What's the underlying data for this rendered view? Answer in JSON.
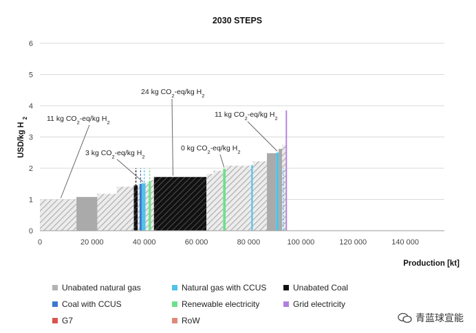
{
  "chart_data": {
    "type": "bar",
    "subtype": "supply-cost-curve",
    "title": "2030 STEPS",
    "xlabel": "Production [kt]",
    "ylabel": "USD/kg H2",
    "xlim": [
      0,
      155000
    ],
    "ylim": [
      0,
      6
    ],
    "xticks": [
      0,
      20000,
      40000,
      60000,
      80000,
      100000,
      120000,
      140000
    ],
    "xtick_labels": [
      "0",
      "20 000",
      "40 000",
      "60 000",
      "80 000",
      "100 000",
      "120 000",
      "140 000"
    ],
    "yticks": [
      0,
      1,
      2,
      3,
      4,
      5,
      6
    ],
    "ytick_labels": [
      "0",
      "1",
      "2",
      "3",
      "4",
      "5",
      "6"
    ],
    "grid": "horizontal",
    "legend_position": "bottom",
    "categories": [
      {
        "key": "ung",
        "name": "Unabated natural gas",
        "color": "#b3b3b3"
      },
      {
        "key": "ngccus",
        "name": "Natural gas with CCUS",
        "color": "#4fc3e8"
      },
      {
        "key": "coal",
        "name": "Unabated Coal",
        "color": "#111111"
      },
      {
        "key": "coalccus",
        "name": "Coal with CCUS",
        "color": "#3a78d0"
      },
      {
        "key": "ren",
        "name": "Renewable electricity",
        "color": "#6ee08a"
      },
      {
        "key": "grid",
        "name": "Grid electricity",
        "color": "#b07fe0"
      },
      {
        "key": "g7",
        "name": "G7",
        "color": "#d9534f"
      },
      {
        "key": "row",
        "name": "RoW",
        "color": "#e08878"
      }
    ],
    "segments": [
      {
        "x0": 0,
        "x1": 14000,
        "y": 1.0,
        "source": "ung",
        "region": "RoW"
      },
      {
        "x0": 14000,
        "x1": 22000,
        "y": 1.08,
        "source": "ung",
        "region": "G7"
      },
      {
        "x0": 22000,
        "x1": 29500,
        "y": 1.18,
        "source": "ung",
        "region": "RoW"
      },
      {
        "x0": 29500,
        "x1": 36000,
        "y": 1.41,
        "source": "ung",
        "region": "RoW"
      },
      {
        "x0": 36000,
        "x1": 37500,
        "y": 1.45,
        "source": "coal",
        "region": "RoW"
      },
      {
        "x0": 37500,
        "x1": 38200,
        "y": 1.5,
        "source": "ung",
        "region": "RoW"
      },
      {
        "x0": 38200,
        "x1": 39000,
        "y": 1.5,
        "source": "coalccus",
        "region": "RoW"
      },
      {
        "x0": 39000,
        "x1": 40500,
        "y": 1.52,
        "source": "ngccus",
        "region": "RoW"
      },
      {
        "x0": 40500,
        "x1": 41700,
        "y": 1.55,
        "source": "ung",
        "region": "RoW"
      },
      {
        "x0": 41700,
        "x1": 42600,
        "y": 1.58,
        "source": "ren",
        "region": "RoW"
      },
      {
        "x0": 42600,
        "x1": 43700,
        "y": 1.62,
        "source": "ung",
        "region": "RoW"
      },
      {
        "x0": 43700,
        "x1": 63800,
        "y": 1.72,
        "source": "coal",
        "region": "RoW"
      },
      {
        "x0": 63800,
        "x1": 66500,
        "y": 1.82,
        "source": "ung",
        "region": "RoW"
      },
      {
        "x0": 66500,
        "x1": 70200,
        "y": 1.92,
        "source": "ung",
        "region": "RoW"
      },
      {
        "x0": 70200,
        "x1": 71200,
        "y": 1.98,
        "source": "ren",
        "region": "RoW"
      },
      {
        "x0": 71200,
        "x1": 81000,
        "y": 2.08,
        "source": "ung",
        "region": "RoW"
      },
      {
        "x0": 81000,
        "x1": 81600,
        "y": 2.1,
        "source": "ngccus",
        "region": "RoW"
      },
      {
        "x0": 81600,
        "x1": 87000,
        "y": 2.22,
        "source": "ung",
        "region": "RoW"
      },
      {
        "x0": 87000,
        "x1": 90500,
        "y": 2.48,
        "source": "ung",
        "region": "G7"
      },
      {
        "x0": 90500,
        "x1": 91500,
        "y": 2.5,
        "source": "ngccus",
        "region": "RoW"
      },
      {
        "x0": 91500,
        "x1": 92800,
        "y": 2.62,
        "source": "ung",
        "region": "G7"
      },
      {
        "x0": 92800,
        "x1": 94200,
        "y": 2.75,
        "source": "ung",
        "region": "RoW"
      },
      {
        "x0": 94200,
        "x1": 94700,
        "y": 3.85,
        "source": "grid",
        "region": "RoW"
      }
    ],
    "dashed_markers": [
      {
        "x": 36800,
        "source": "coal"
      },
      {
        "x": 38600,
        "source": "coalccus"
      },
      {
        "x": 40000,
        "source": "ngccus"
      },
      {
        "x": 42100,
        "source": "ren"
      },
      {
        "x": 81300,
        "source": "ngccus"
      },
      {
        "x": 91000,
        "source": "ngccus"
      },
      {
        "x": 93300,
        "source": "ngccus"
      }
    ],
    "annotations": [
      {
        "text_main": "11 kg CO",
        "sub": "2",
        "text_mid": "-eq/kg H",
        "sub2": "2",
        "points_to_x": 8000,
        "points_to_y": 1.0
      },
      {
        "text_main": "3 kg CO",
        "sub": "2",
        "text_mid": "-eq/kg H",
        "sub2": "2",
        "points_to_x": 39500,
        "points_to_y": 1.52
      },
      {
        "text_main": "24 kg CO",
        "sub": "2",
        "text_mid": "-eq/kg H",
        "sub2": "2",
        "points_to_x": 51000,
        "points_to_y": 1.72
      },
      {
        "text_main": "0 kg CO",
        "sub": "2",
        "text_mid": "-eq/kg H",
        "sub2": "2",
        "points_to_x": 70600,
        "points_to_y": 1.98
      },
      {
        "text_main": "11 kg CO",
        "sub": "2",
        "text_mid": "-eq/kg H",
        "sub2": "2",
        "points_to_x": 91000,
        "points_to_y": 2.5
      }
    ]
  },
  "watermark": {
    "text": "青蓝球宣能"
  }
}
